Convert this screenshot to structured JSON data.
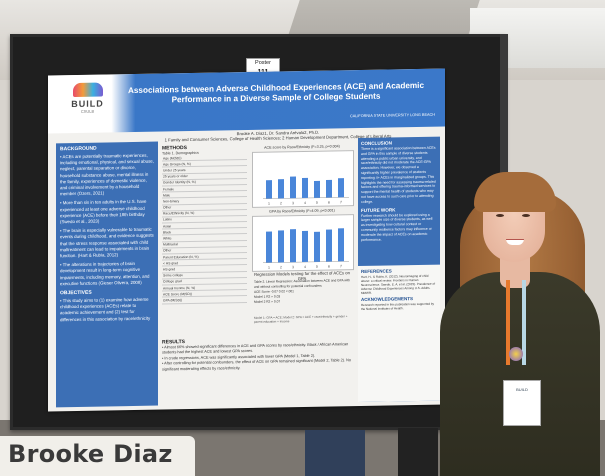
{
  "poster_number": {
    "line1": "Poster",
    "line2": "111"
  },
  "poster": {
    "logo_text": "BUILD",
    "logo_sub": "CSULB",
    "title": "Associations between Adverse Childhood Experiences (ACE) and Academic Performance in a Diverse Sample of College Students",
    "university": "CALIFORNIA STATE UNIVERSITY LONG BEACH",
    "authors": "Brooke A. Diaz1, Dr. Sandra Arévalo2, Ph.D.",
    "affiliations": "1 Family and Consumer Sciences, College of Health Sciences; 2 Human Development Department, College of Liberal Arts",
    "background_heading": "BACKGROUND",
    "background_p1": "• ACEs are potentially traumatic experiences, including emotional, physical, and sexual abuse, neglect, parental separation or divorce, household substance abuse, mental illness in the family, experiences of domestic violence, and criminal involvement by a household member (Ozers, 2021)",
    "background_p2": "• More than six in ten adults in the U.S. have experienced at least one adverse childhood experience (ACE) before their 18th birthday (Swedo et al., 2023)",
    "background_p3": "• The brain is especially vulnerable to traumatic events during childhood, and evidence suggests that the stress response associated with child maltreatment can lead to impairments in brain function. (Hart & Rubia, 2012)",
    "background_p4": "• The alterations in trajectories of brain development result in long-term cognitive impairments, including memory, attention, and executive functions (Gieser Olivera, 2008)",
    "objectives_heading": "OBJECTIVES",
    "objectives_p1": "• This study aims to (1) examine how adverse childhood experiences (ACEs) relate to academic achievement and (2) test for differences in this association by race/ethnicity",
    "methods_heading": "METHODS",
    "methods_table_title": "Table 1. Demographics",
    "methods_rows": [
      "Age (M(SD))",
      "Age Groups (N, %)",
      "Under 25 years",
      "25 years or older",
      "Gender Identity (N, %)",
      "Female",
      "Male",
      "Non-binary",
      "Other",
      "Race/Ethnicity (N, %)",
      "Latinx",
      "Asian",
      "Black",
      "White",
      "Multiracial",
      "Other",
      "Parent Education (N, %)",
      "< HS grad",
      "HS grad",
      "Some college",
      "College grad",
      "Annual Income (N, %)",
      "ACE Score (M(SD))",
      "GPA (M(SD))"
    ],
    "chart1_title": "ACE score by Race/Ethnicity (F=3.25, p=0.004)",
    "chart2_title": "GPA by Race/Ethnicity (F=4.09, p<0.001)",
    "regression_title": "Regression Models testing for the effect of ACEs on GPA",
    "regression_rows": [
      "Table 2. Linear Regression: Association between ACE and GPA with and without controlling for potential confounders",
      "ACE Score  -0.07  0.02  <.001",
      "Model 1  R2 = 0.03",
      "Model 2  R2 = 0.07"
    ],
    "regression_note": "Model 1: GPA = ACE; Model 2: GPA = ACE + race/ethnicity + gender + parent education + income",
    "results_heading": "RESULTS",
    "results_p1": "• Almost 66% showed significant differences in ACE and GPA scores by race/ethnicity. Black / African American students had the highest ACE and lowest GPA scores.",
    "results_p2": "• In crude regressions, ACE was significantly associated with lower GPA (Model 1, Table 2).",
    "results_p3": "• After controlling for potential confounders, the effect of ACE on GPA remained significant (Model 2, Table 2). No significant moderating effects by race/ethnicity.",
    "conclusion_heading": "CONCLUSION",
    "conclusion_p": "There is a significant association between ACEs and GPA in this sample of diverse students attending a public urban university, and race/ethnicity did not moderate the ACE-GPA association. However, we observed a significantly higher prevalence of students reporting 4+ ACEs in marginalized groups. This highlights the need for assessing trauma-related factors and offering trauma-informed services to support the mental health of students who may not have access to such care prior to attending college.",
    "future_heading": "FUTURE WORK",
    "future_p": "Further research should be explored using a larger sample size of diverse students, as well as investigating how cultural context or community resilience factors may influence or moderate the impact of ACEs on academic performance.",
    "references_heading": "REFERENCES",
    "references_p": "Hart, H., & Rubia, K. (2012). Neuroimaging of child abuse: a critical review. Frontiers in Human Neuroscience. Swedo, E. A. et al. (2023). Prevalence of Adverse Childhood Experiences Among U.S. Adults. MMWR.",
    "ack_heading": "ACKNOWLEDGEMENTS",
    "ack_p": "Research reported in this publication was supported by the National Institutes of Health."
  },
  "badge_text": "BUILD",
  "caption": {
    "name": "Brooke Diaz"
  },
  "chart_data": [
    {
      "type": "bar",
      "title": "ACE score by Race/Ethnicity (F=3.25, p=0.004)",
      "categories": [
        "1",
        "2",
        "3",
        "4",
        "5",
        "6",
        "7"
      ],
      "values": [
        2.3,
        2.4,
        2.7,
        2.5,
        2.1,
        2.2,
        2.4
      ],
      "ylim": [
        0,
        5
      ]
    },
    {
      "type": "bar",
      "title": "GPA by Race/Ethnicity (F=4.09, p<0.001)",
      "categories": [
        "1",
        "2",
        "3",
        "4",
        "5",
        "6",
        "7"
      ],
      "values": [
        3.1,
        3.2,
        3.3,
        3.1,
        3.0,
        3.2,
        3.3
      ],
      "ylim": [
        0,
        4
      ]
    }
  ],
  "colors": {
    "poster_blue": "#3c6fb5",
    "bar_blue": "#4a86d9",
    "caption_bg": "#f1efea",
    "lanyard_orange": "#e7792d"
  }
}
